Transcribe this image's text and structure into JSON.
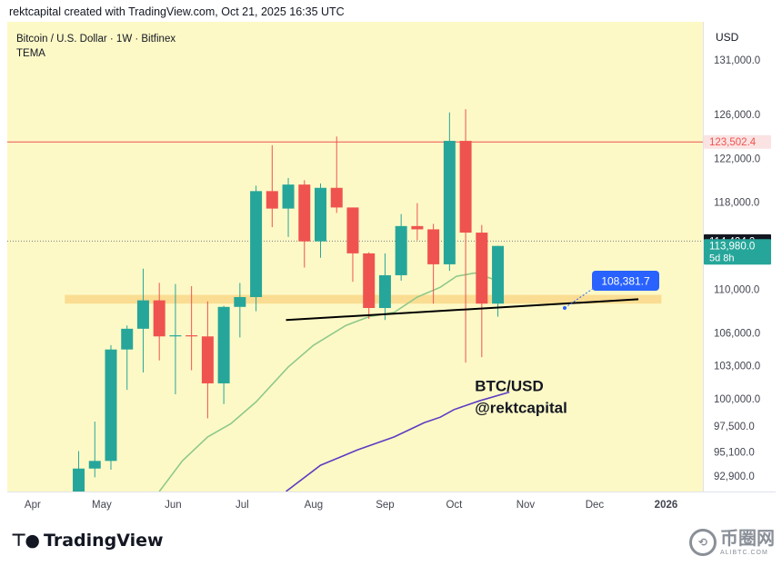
{
  "header": {
    "text": "rektcapital created with TradingView.com, Oct 21, 2025 16:35 UTC"
  },
  "legend": {
    "symbol": "Bitcoin / U.S. Dollar · 1W · Bitfinex",
    "indicator": "TEMA"
  },
  "footer": {
    "brand": "TradingView",
    "watermark_name": "币圈网",
    "watermark_sub": "ALIBTC.COM"
  },
  "colors": {
    "background": "#fdf9c6",
    "bull": "#26a69a",
    "bear": "#ef5350",
    "tema_green": "#8fc98a",
    "tema_purple": "#5b3cc4",
    "resistance": "#ef5350",
    "support_zone": "#f9d98c",
    "trendline": "#000000",
    "price_label_bg": "#131722",
    "callout": "#2962ff"
  },
  "chart_data": {
    "type": "candlestick",
    "currency": "USD",
    "y_tick_labels": [
      "131,000.0",
      "126,000.0",
      "122,000.0",
      "118,000.0",
      "110,000.0",
      "106,000.0",
      "103,000.0",
      "100,000.0",
      "97,500.0",
      "95,100.0",
      "92,900.0"
    ],
    "y_ticks": [
      131000,
      126000,
      122000,
      118000,
      110000,
      106000,
      103000,
      100000,
      97500,
      95100,
      92900
    ],
    "x_tick_labels": [
      "Apr",
      "May",
      "Jun",
      "Jul",
      "Aug",
      "Sep",
      "Oct",
      "Nov",
      "Dec",
      "2026"
    ],
    "x_ticks": [
      "2025-04-01",
      "2025-05-01",
      "2025-06-01",
      "2025-07-01",
      "2025-08-01",
      "2025-09-01",
      "2025-10-01",
      "2025-11-01",
      "2025-12-01",
      "2026-01-01"
    ],
    "x_range": [
      "2025-03-21",
      "2026-01-17"
    ],
    "y_range": [
      91500,
      134500
    ],
    "candles": [
      {
        "date": "2025-04-21",
        "open": 88000,
        "high": 95200,
        "low": 86500,
        "close": 93600
      },
      {
        "date": "2025-04-28",
        "open": 93600,
        "high": 97900,
        "low": 92800,
        "close": 94300
      },
      {
        "date": "2025-05-05",
        "open": 94300,
        "high": 104900,
        "low": 93500,
        "close": 104500
      },
      {
        "date": "2025-05-12",
        "open": 104500,
        "high": 106700,
        "low": 100800,
        "close": 106400
      },
      {
        "date": "2025-05-19",
        "open": 106400,
        "high": 111900,
        "low": 102400,
        "close": 109000
      },
      {
        "date": "2025-05-26",
        "open": 109000,
        "high": 110600,
        "low": 103500,
        "close": 105700
      },
      {
        "date": "2025-06-02",
        "open": 105700,
        "high": 110500,
        "low": 100400,
        "close": 105800
      },
      {
        "date": "2025-06-09",
        "open": 105800,
        "high": 110300,
        "low": 102600,
        "close": 105700
      },
      {
        "date": "2025-06-16",
        "open": 105700,
        "high": 108900,
        "low": 98200,
        "close": 101400
      },
      {
        "date": "2025-06-23",
        "open": 101400,
        "high": 108500,
        "low": 99500,
        "close": 108400
      },
      {
        "date": "2025-06-30",
        "open": 108400,
        "high": 110600,
        "low": 105600,
        "close": 109300
      },
      {
        "date": "2025-07-07",
        "open": 109300,
        "high": 119500,
        "low": 108000,
        "close": 119000
      },
      {
        "date": "2025-07-14",
        "open": 119000,
        "high": 123200,
        "low": 115700,
        "close": 117400
      },
      {
        "date": "2025-07-21",
        "open": 117400,
        "high": 120200,
        "low": 114800,
        "close": 119600
      },
      {
        "date": "2025-07-28",
        "open": 119600,
        "high": 120000,
        "low": 112000,
        "close": 114400
      },
      {
        "date": "2025-08-04",
        "open": 114400,
        "high": 119700,
        "low": 112900,
        "close": 119300
      },
      {
        "date": "2025-08-11",
        "open": 119300,
        "high": 124000,
        "low": 117000,
        "close": 117500
      },
      {
        "date": "2025-08-18",
        "open": 117500,
        "high": 117500,
        "low": 110700,
        "close": 113300
      },
      {
        "date": "2025-08-25",
        "open": 113300,
        "high": 113400,
        "low": 107300,
        "close": 108300
      },
      {
        "date": "2025-09-01",
        "open": 108300,
        "high": 113300,
        "low": 107200,
        "close": 111300
      },
      {
        "date": "2025-09-08",
        "open": 111300,
        "high": 116900,
        "low": 110800,
        "close": 115800
      },
      {
        "date": "2025-09-15",
        "open": 115800,
        "high": 117900,
        "low": 114500,
        "close": 115500
      },
      {
        "date": "2025-09-22",
        "open": 115500,
        "high": 116000,
        "low": 108700,
        "close": 112300
      },
      {
        "date": "2025-09-29",
        "open": 112300,
        "high": 126200,
        "low": 111700,
        "close": 123600
      },
      {
        "date": "2025-10-06",
        "open": 123600,
        "high": 126500,
        "low": 103300,
        "close": 115200
      },
      {
        "date": "2025-10-13",
        "open": 115200,
        "high": 115900,
        "low": 103800,
        "close": 108700
      },
      {
        "date": "2025-10-20",
        "open": 108700,
        "high": 114000,
        "low": 107500,
        "close": 113980
      }
    ],
    "tema_green": [
      {
        "date": "2025-05-26",
        "y": 91500
      },
      {
        "date": "2025-06-05",
        "y": 94300
      },
      {
        "date": "2025-06-16",
        "y": 96500
      },
      {
        "date": "2025-06-26",
        "y": 97700
      },
      {
        "date": "2025-07-07",
        "y": 99700
      },
      {
        "date": "2025-07-21",
        "y": 102900
      },
      {
        "date": "2025-08-01",
        "y": 104900
      },
      {
        "date": "2025-08-15",
        "y": 106700
      },
      {
        "date": "2025-08-25",
        "y": 107500
      },
      {
        "date": "2025-09-05",
        "y": 107900
      },
      {
        "date": "2025-09-15",
        "y": 109300
      },
      {
        "date": "2025-09-25",
        "y": 110200
      },
      {
        "date": "2025-10-02",
        "y": 111200
      },
      {
        "date": "2025-10-10",
        "y": 111500
      },
      {
        "date": "2025-10-20",
        "y": 110800
      }
    ],
    "tema_purple": [
      {
        "date": "2025-07-20",
        "y": 91500
      },
      {
        "date": "2025-08-04",
        "y": 93900
      },
      {
        "date": "2025-08-20",
        "y": 95300
      },
      {
        "date": "2025-09-05",
        "y": 96500
      },
      {
        "date": "2025-09-18",
        "y": 97800
      },
      {
        "date": "2025-09-25",
        "y": 98300
      },
      {
        "date": "2025-10-01",
        "y": 99000
      },
      {
        "date": "2025-10-12",
        "y": 99800
      },
      {
        "date": "2025-10-25",
        "y": 100600
      }
    ],
    "resistance_level": 123502.4,
    "support_zone": [
      108700,
      109500
    ],
    "trendline": [
      {
        "date": "2025-07-20",
        "y": 107200
      },
      {
        "date": "2025-12-20",
        "y": 109100
      }
    ],
    "callout": {
      "date": "2025-11-18",
      "y": 108300,
      "label": "108,381.7"
    },
    "price_labels": [
      {
        "value": 123502.4,
        "text": "123,502.4",
        "style": "red"
      },
      {
        "value": 114424.2,
        "text": "114,424.2",
        "style": "dark"
      },
      {
        "value": 113980,
        "text": "113,980.0",
        "style": "teal",
        "subtext": "5d 8h"
      }
    ],
    "annotation": {
      "lines": [
        "BTC/USD",
        "@rektcapital"
      ]
    }
  }
}
